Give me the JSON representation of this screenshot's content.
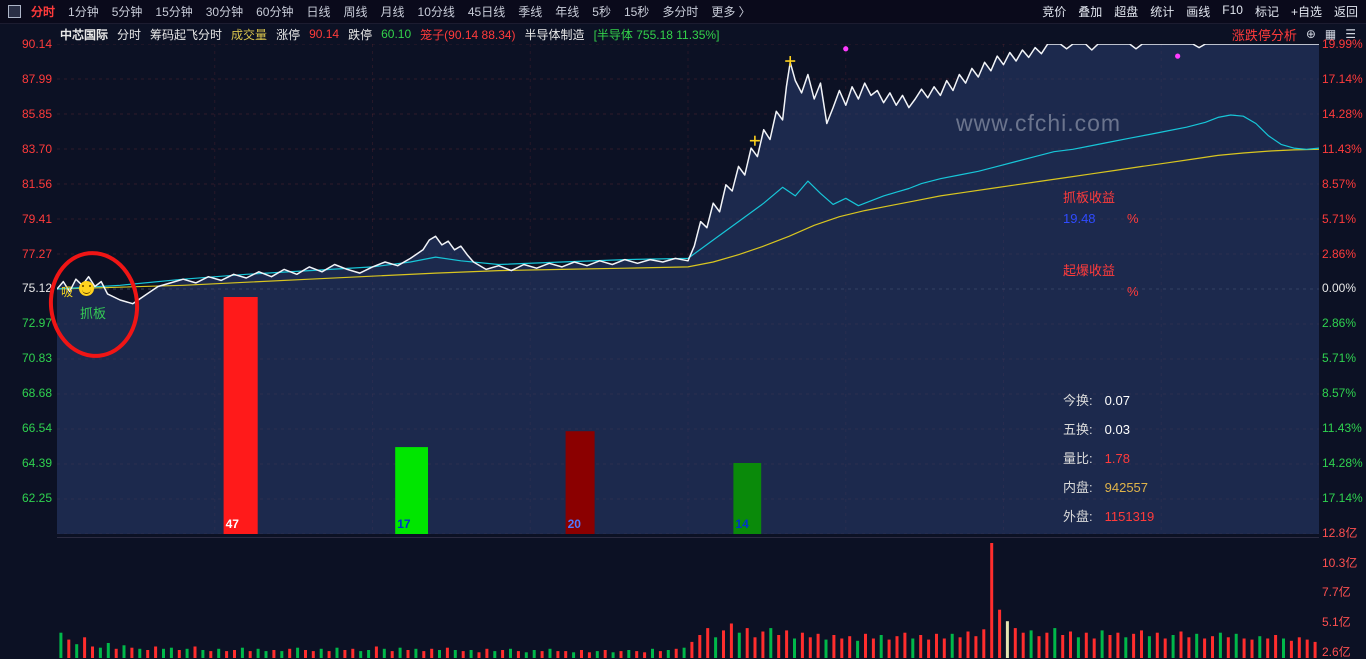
{
  "toolbar": {
    "tabs": [
      {
        "label": "分时",
        "active": true
      },
      {
        "label": "1分钟"
      },
      {
        "label": "5分钟"
      },
      {
        "label": "15分钟"
      },
      {
        "label": "30分钟"
      },
      {
        "label": "60分钟"
      },
      {
        "label": "日线"
      },
      {
        "label": "周线"
      },
      {
        "label": "月线"
      },
      {
        "label": "10分线"
      },
      {
        "label": "45日线"
      },
      {
        "label": "季线"
      },
      {
        "label": "年线"
      },
      {
        "label": "5秒"
      },
      {
        "label": "15秒"
      },
      {
        "label": "多分时"
      },
      {
        "label": "更多 〉"
      }
    ],
    "right_items": [
      "竞价",
      "叠加",
      "超盘",
      "统计",
      "画线",
      "F10",
      "标记",
      "+自选",
      "返回"
    ]
  },
  "info_bar": {
    "stock": "中芯国际",
    "period": "分时",
    "indicator": "筹码起飞分时",
    "volume_label": "成交量",
    "limit_up_label": "涨停",
    "limit_up": "90.14",
    "limit_down_label": "跌停",
    "limit_down": "60.10",
    "cage": "笼子(90.14 88.34)",
    "industry": "半导体制造",
    "sector_quote": "[半导体 755.18 11.35%]",
    "analysis": "涨跌停分析"
  },
  "axes": {
    "left": [
      {
        "t": "90.14",
        "c": "#ff3b3b"
      },
      {
        "t": "87.99",
        "c": "#ff3b3b"
      },
      {
        "t": "85.85",
        "c": "#ff3b3b"
      },
      {
        "t": "83.70",
        "c": "#ff3b3b"
      },
      {
        "t": "81.56",
        "c": "#ff3b3b"
      },
      {
        "t": "79.41",
        "c": "#ff3b3b"
      },
      {
        "t": "77.27",
        "c": "#ff3b3b"
      },
      {
        "t": "75.12",
        "c": "#e8e8e8"
      },
      {
        "t": "72.97",
        "c": "#2fd24f"
      },
      {
        "t": "70.83",
        "c": "#2fd24f"
      },
      {
        "t": "68.68",
        "c": "#2fd24f"
      },
      {
        "t": "66.54",
        "c": "#2fd24f"
      },
      {
        "t": "64.39",
        "c": "#2fd24f"
      },
      {
        "t": "62.25",
        "c": "#2fd24f"
      }
    ],
    "right": [
      {
        "t": "19.99%",
        "c": "#ff3b3b"
      },
      {
        "t": "17.14%",
        "c": "#ff3b3b"
      },
      {
        "t": "14.28%",
        "c": "#ff3b3b"
      },
      {
        "t": "11.43%",
        "c": "#ff3b3b"
      },
      {
        "t": "8.57%",
        "c": "#ff3b3b"
      },
      {
        "t": "5.71%",
        "c": "#ff3b3b"
      },
      {
        "t": "2.86%",
        "c": "#ff3b3b"
      },
      {
        "t": "0.00%",
        "c": "#e8e8e8"
      },
      {
        "t": "2.86%",
        "c": "#2fd24f"
      },
      {
        "t": "5.71%",
        "c": "#2fd24f"
      },
      {
        "t": "8.57%",
        "c": "#2fd24f"
      },
      {
        "t": "11.43%",
        "c": "#2fd24f"
      },
      {
        "t": "14.28%",
        "c": "#2fd24f"
      },
      {
        "t": "17.14%",
        "c": "#2fd24f"
      }
    ],
    "volume": [
      {
        "t": "12.8亿",
        "c": "#ff5050"
      },
      {
        "t": "10.3亿",
        "c": "#ff5050"
      },
      {
        "t": "7.7亿",
        "c": "#ff5050"
      },
      {
        "t": "5.1亿",
        "c": "#ff5050"
      },
      {
        "t": "2.6亿",
        "c": "#ff5050"
      }
    ]
  },
  "annotations": {
    "watermark": "www.cfchi.com",
    "circle_text_left": "吸",
    "circle_text_bottom": "抓板",
    "grab_label": "抓板收益",
    "grab_value": "19.48",
    "grab_unit": "%",
    "burst_label": "起爆收益",
    "burst_value": "",
    "burst_unit": "%"
  },
  "stats": {
    "rows": [
      {
        "label": "今换:",
        "value": "0.07",
        "color": "#ffffff"
      },
      {
        "label": "五换:",
        "value": "0.03",
        "color": "#ffffff"
      },
      {
        "label": "量比:",
        "value": "1.78",
        "color": "#ff3b3b"
      },
      {
        "label": "内盘:",
        "value": "942557",
        "color": "#e0b44a"
      },
      {
        "label": "外盘:",
        "value": "1151319",
        "color": "#ff3b3b"
      }
    ]
  },
  "chart_data": {
    "type": "line",
    "title": "中芯国际 分时图 (涨停 90.14 / 跌停 60.10, 前收 75.12)",
    "pct_max": 19.99,
    "price_line": [
      [
        0,
        0
      ],
      [
        0.005,
        0.6
      ],
      [
        0.01,
        -0.2
      ],
      [
        0.015,
        0.8
      ],
      [
        0.02,
        0.3
      ],
      [
        0.025,
        1
      ],
      [
        0.03,
        0.2
      ],
      [
        0.035,
        0.6
      ],
      [
        0.04,
        -0.4
      ],
      [
        0.05,
        -0.9
      ],
      [
        0.06,
        -1.2
      ],
      [
        0.07,
        -0.5
      ],
      [
        0.08,
        0.2
      ],
      [
        0.09,
        0.5
      ],
      [
        0.1,
        0.8
      ],
      [
        0.11,
        0.5
      ],
      [
        0.12,
        1
      ],
      [
        0.13,
        0.7
      ],
      [
        0.14,
        1.2
      ],
      [
        0.15,
        0.9
      ],
      [
        0.16,
        1.4
      ],
      [
        0.17,
        1
      ],
      [
        0.18,
        1.6
      ],
      [
        0.19,
        1.2
      ],
      [
        0.2,
        1.8
      ],
      [
        0.21,
        1.4
      ],
      [
        0.22,
        2
      ],
      [
        0.23,
        1.6
      ],
      [
        0.24,
        1.3
      ],
      [
        0.25,
        1.8
      ],
      [
        0.26,
        2.2
      ],
      [
        0.27,
        1.9
      ],
      [
        0.28,
        2.5
      ],
      [
        0.29,
        3.2
      ],
      [
        0.295,
        4
      ],
      [
        0.3,
        4.3
      ],
      [
        0.305,
        3.6
      ],
      [
        0.31,
        3.9
      ],
      [
        0.315,
        3.2
      ],
      [
        0.32,
        3.5
      ],
      [
        0.325,
        2.8
      ],
      [
        0.33,
        2.2
      ],
      [
        0.34,
        1.6
      ],
      [
        0.35,
        1.9
      ],
      [
        0.36,
        1.5
      ],
      [
        0.37,
        2
      ],
      [
        0.38,
        1.7
      ],
      [
        0.39,
        2.1
      ],
      [
        0.4,
        1.8
      ],
      [
        0.41,
        2.2
      ],
      [
        0.42,
        1.9
      ],
      [
        0.43,
        2.3
      ],
      [
        0.44,
        2
      ],
      [
        0.45,
        2.4
      ],
      [
        0.46,
        2.1
      ],
      [
        0.47,
        2.4
      ],
      [
        0.48,
        2.2
      ],
      [
        0.49,
        2.5
      ],
      [
        0.5,
        2.3
      ],
      [
        0.505,
        3.5
      ],
      [
        0.51,
        5.5
      ],
      [
        0.515,
        5
      ],
      [
        0.52,
        7
      ],
      [
        0.525,
        6.3
      ],
      [
        0.53,
        8.5
      ],
      [
        0.535,
        8
      ],
      [
        0.54,
        10
      ],
      [
        0.545,
        9.3
      ],
      [
        0.55,
        11.5
      ],
      [
        0.555,
        10.8
      ],
      [
        0.56,
        13
      ],
      [
        0.565,
        12.2
      ],
      [
        0.57,
        14.5
      ],
      [
        0.575,
        13.8
      ],
      [
        0.578,
        16.5
      ],
      [
        0.581,
        18.5
      ],
      [
        0.585,
        17
      ],
      [
        0.59,
        16
      ],
      [
        0.595,
        17.5
      ],
      [
        0.6,
        15.5
      ],
      [
        0.605,
        16.8
      ],
      [
        0.61,
        13.5
      ],
      [
        0.615,
        14.8
      ],
      [
        0.62,
        16.2
      ],
      [
        0.625,
        15
      ],
      [
        0.63,
        16.5
      ],
      [
        0.635,
        15.5
      ],
      [
        0.64,
        16.8
      ],
      [
        0.645,
        15.8
      ],
      [
        0.65,
        16.2
      ],
      [
        0.655,
        15.2
      ],
      [
        0.66,
        16
      ],
      [
        0.665,
        15
      ],
      [
        0.67,
        15.8
      ],
      [
        0.675,
        14.8
      ],
      [
        0.68,
        15.5
      ],
      [
        0.685,
        16.3
      ],
      [
        0.69,
        15.6
      ],
      [
        0.695,
        16.5
      ],
      [
        0.7,
        15.8
      ],
      [
        0.705,
        17
      ],
      [
        0.71,
        16.2
      ],
      [
        0.715,
        17.5
      ],
      [
        0.72,
        16.8
      ],
      [
        0.725,
        18
      ],
      [
        0.73,
        17.3
      ],
      [
        0.735,
        18.5
      ],
      [
        0.74,
        17.8
      ],
      [
        0.745,
        19
      ],
      [
        0.75,
        18.3
      ],
      [
        0.755,
        19.3
      ],
      [
        0.76,
        18.6
      ],
      [
        0.765,
        19.5
      ],
      [
        0.77,
        18.9
      ],
      [
        0.775,
        19.7
      ],
      [
        0.78,
        19.2
      ],
      [
        0.785,
        19.99
      ],
      [
        0.795,
        19.99
      ],
      [
        0.8,
        19.6
      ],
      [
        0.805,
        19.99
      ],
      [
        0.815,
        19.99
      ],
      [
        0.82,
        19.5
      ],
      [
        0.825,
        19.99
      ],
      [
        0.85,
        19.99
      ],
      [
        0.855,
        19.6
      ],
      [
        0.86,
        19.99
      ],
      [
        0.9,
        19.99
      ],
      [
        0.905,
        19.7
      ],
      [
        0.91,
        19.99
      ],
      [
        1,
        19.99
      ]
    ],
    "sector_line": [
      [
        0,
        0
      ],
      [
        0.05,
        0.3
      ],
      [
        0.1,
        0.8
      ],
      [
        0.15,
        1.2
      ],
      [
        0.2,
        1.5
      ],
      [
        0.25,
        1.8
      ],
      [
        0.28,
        2.2
      ],
      [
        0.3,
        2.6
      ],
      [
        0.32,
        2.3
      ],
      [
        0.35,
        2
      ],
      [
        0.4,
        2.2
      ],
      [
        0.45,
        2.4
      ],
      [
        0.5,
        2.5
      ],
      [
        0.52,
        4
      ],
      [
        0.54,
        5.5
      ],
      [
        0.56,
        7
      ],
      [
        0.575,
        8.3
      ],
      [
        0.585,
        7.6
      ],
      [
        0.595,
        8.8
      ],
      [
        0.605,
        7.8
      ],
      [
        0.615,
        6.9
      ],
      [
        0.625,
        7.4
      ],
      [
        0.635,
        6.8
      ],
      [
        0.645,
        7.2
      ],
      [
        0.655,
        7.6
      ],
      [
        0.665,
        7.9
      ],
      [
        0.675,
        8.2
      ],
      [
        0.685,
        8.6
      ],
      [
        0.7,
        9
      ],
      [
        0.715,
        9.3
      ],
      [
        0.73,
        9.6
      ],
      [
        0.745,
        10
      ],
      [
        0.76,
        10.4
      ],
      [
        0.775,
        10.8
      ],
      [
        0.79,
        11.2
      ],
      [
        0.805,
        11.4
      ],
      [
        0.82,
        11.7
      ],
      [
        0.835,
        12
      ],
      [
        0.85,
        12.3
      ],
      [
        0.865,
        12.6
      ],
      [
        0.88,
        12.9
      ],
      [
        0.895,
        13.2
      ],
      [
        0.91,
        13.6
      ],
      [
        0.92,
        14
      ],
      [
        0.93,
        14.2
      ],
      [
        0.94,
        14.1
      ],
      [
        0.95,
        13.5
      ],
      [
        0.96,
        12.5
      ],
      [
        0.97,
        11.8
      ],
      [
        0.98,
        11.5
      ],
      [
        0.99,
        11.4
      ],
      [
        1,
        11.5
      ]
    ],
    "avg_line": [
      [
        0,
        0
      ],
      [
        0.1,
        0.3
      ],
      [
        0.2,
        0.8
      ],
      [
        0.3,
        1.3
      ],
      [
        0.35,
        1.5
      ],
      [
        0.4,
        1.6
      ],
      [
        0.45,
        1.7
      ],
      [
        0.5,
        1.8
      ],
      [
        0.52,
        2.2
      ],
      [
        0.54,
        2.8
      ],
      [
        0.56,
        3.5
      ],
      [
        0.58,
        4.3
      ],
      [
        0.6,
        5.2
      ],
      [
        0.62,
        5.9
      ],
      [
        0.64,
        6.4
      ],
      [
        0.66,
        6.8
      ],
      [
        0.68,
        7.2
      ],
      [
        0.7,
        7.6
      ],
      [
        0.72,
        7.9
      ],
      [
        0.74,
        8.2
      ],
      [
        0.76,
        8.5
      ],
      [
        0.78,
        8.8
      ],
      [
        0.8,
        9.1
      ],
      [
        0.82,
        9.4
      ],
      [
        0.84,
        9.7
      ],
      [
        0.86,
        10
      ],
      [
        0.88,
        10.3
      ],
      [
        0.9,
        10.6
      ],
      [
        0.92,
        10.9
      ],
      [
        0.94,
        11.1
      ],
      [
        0.96,
        11.25
      ],
      [
        0.98,
        11.35
      ],
      [
        1,
        11.4
      ]
    ],
    "signal_bars": [
      {
        "x": 0.132,
        "w": 0.027,
        "top_pct": -0.65,
        "value": "47",
        "color": "#ff1a1a",
        "label_color": "#ffffff"
      },
      {
        "x": 0.268,
        "w": 0.026,
        "top_pct": -12.9,
        "value": "17",
        "color": "#00e600",
        "label_color": "#0033cc"
      },
      {
        "x": 0.403,
        "w": 0.023,
        "top_pct": -11.6,
        "value": "20",
        "color": "#8b0000",
        "label_color": "#4d79ff"
      },
      {
        "x": 0.536,
        "w": 0.022,
        "top_pct": -14.2,
        "value": "14",
        "color": "#0a8a0a",
        "label_color": "#0033cc"
      }
    ],
    "markers": [
      {
        "x": 0.625,
        "pct": 19.6,
        "type": "dot",
        "color": "#ff3bff"
      },
      {
        "x": 0.888,
        "pct": 19.0,
        "type": "dot",
        "color": "#ff3bff"
      },
      {
        "x": 0.581,
        "pct": 18.6,
        "type": "cross",
        "color": "#ffd21e"
      },
      {
        "x": 0.553,
        "pct": 12.1,
        "type": "cross",
        "color": "#ffd21e"
      }
    ],
    "volume": {
      "color_map": {
        "r": "#ff2d2d",
        "g": "#00b84a",
        "w": "#e4e4b0"
      },
      "colors": "grgrrggrgrgrrggrgrgrgrrgrggrgrgrrgrgrrggrgrgrgrrgrgrgrrgrgrggrgrrgrrgrgrgrrgrgrgrrrgrrgrrrgrrgrrrgrrrgrrgrrrgrrrrgrrrrrrwrrgrrgrrgrrgrrgrrgrrgrrgrrgrgrrgrrgrr",
      "heights": [
        0.22,
        0.16,
        0.12,
        0.18,
        0.1,
        0.09,
        0.13,
        0.08,
        0.11,
        0.09,
        0.08,
        0.07,
        0.1,
        0.08,
        0.09,
        0.07,
        0.08,
        0.1,
        0.07,
        0.06,
        0.08,
        0.06,
        0.07,
        0.09,
        0.06,
        0.08,
        0.06,
        0.07,
        0.06,
        0.08,
        0.09,
        0.07,
        0.06,
        0.08,
        0.06,
        0.09,
        0.07,
        0.08,
        0.06,
        0.07,
        0.1,
        0.08,
        0.06,
        0.09,
        0.07,
        0.08,
        0.06,
        0.08,
        0.07,
        0.09,
        0.07,
        0.06,
        0.07,
        0.05,
        0.08,
        0.06,
        0.07,
        0.08,
        0.06,
        0.05,
        0.07,
        0.06,
        0.08,
        0.06,
        0.06,
        0.05,
        0.07,
        0.05,
        0.06,
        0.07,
        0.05,
        0.06,
        0.07,
        0.06,
        0.05,
        0.08,
        0.06,
        0.07,
        0.08,
        0.09,
        0.14,
        0.2,
        0.26,
        0.18,
        0.24,
        0.3,
        0.22,
        0.26,
        0.18,
        0.23,
        0.26,
        0.2,
        0.24,
        0.17,
        0.22,
        0.18,
        0.21,
        0.16,
        0.2,
        0.17,
        0.19,
        0.15,
        0.21,
        0.17,
        0.2,
        0.16,
        0.19,
        0.22,
        0.17,
        0.2,
        0.16,
        0.21,
        0.17,
        0.21,
        0.18,
        0.23,
        0.19,
        0.25,
        1.0,
        0.42,
        0.32,
        0.26,
        0.22,
        0.24,
        0.19,
        0.22,
        0.26,
        0.2,
        0.23,
        0.18,
        0.22,
        0.17,
        0.24,
        0.2,
        0.22,
        0.18,
        0.21,
        0.24,
        0.19,
        0.22,
        0.17,
        0.2,
        0.23,
        0.18,
        0.21,
        0.17,
        0.19,
        0.22,
        0.18,
        0.21,
        0.17,
        0.16,
        0.19,
        0.17,
        0.2,
        0.17,
        0.15,
        0.18,
        0.16,
        0.14
      ]
    }
  }
}
